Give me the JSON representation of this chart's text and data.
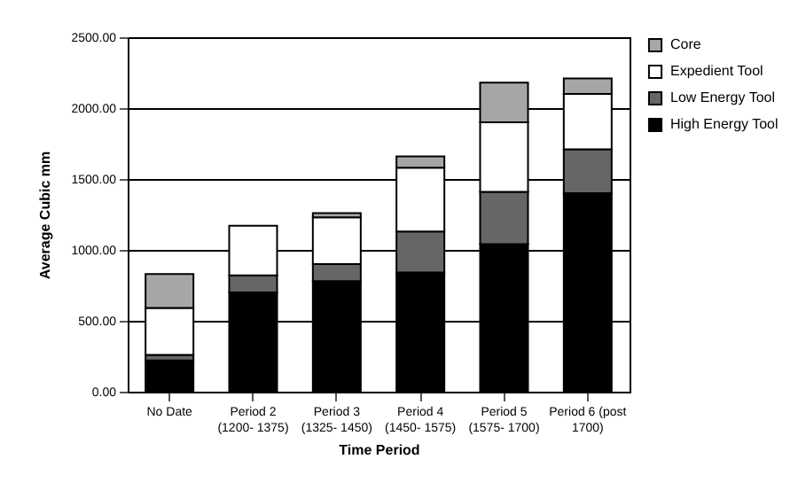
{
  "chart_data": {
    "type": "bar",
    "stacked": true,
    "xlabel": "Time Period",
    "ylabel": "Average Cubic mm",
    "categories": [
      "No Date",
      "Period 2\n(1200- 1375)",
      "Period 3\n(1325- 1450)",
      "Period 4\n(1450- 1575)",
      "Period 5\n(1575- 1700)",
      "Period 6 (post\n1700)"
    ],
    "series": [
      {
        "name": "High Energy Tool",
        "color": "#000000",
        "values": [
          220,
          700,
          780,
          840,
          1040,
          1400
        ]
      },
      {
        "name": "Low Energy Tool",
        "color": "#666666",
        "values": [
          40,
          120,
          120,
          290,
          370,
          310
        ]
      },
      {
        "name": "Expedient Tool",
        "color": "#ffffff",
        "values": [
          330,
          350,
          330,
          450,
          490,
          390
        ]
      },
      {
        "name": "Core",
        "color": "#a6a6a6",
        "values": [
          240,
          null,
          30,
          80,
          280,
          110
        ]
      }
    ],
    "ylim": [
      0,
      2500
    ],
    "yticks": [
      {
        "value": 0,
        "label": "0.00"
      },
      {
        "value": 500,
        "label": "500.00"
      },
      {
        "value": 1000,
        "label": "1000.00"
      },
      {
        "value": 1500,
        "label": "1500.00"
      },
      {
        "value": 2000,
        "label": "2000.00"
      },
      {
        "value": 2500,
        "label": "2500.00"
      }
    ],
    "grid": "y",
    "legend": "top right"
  }
}
